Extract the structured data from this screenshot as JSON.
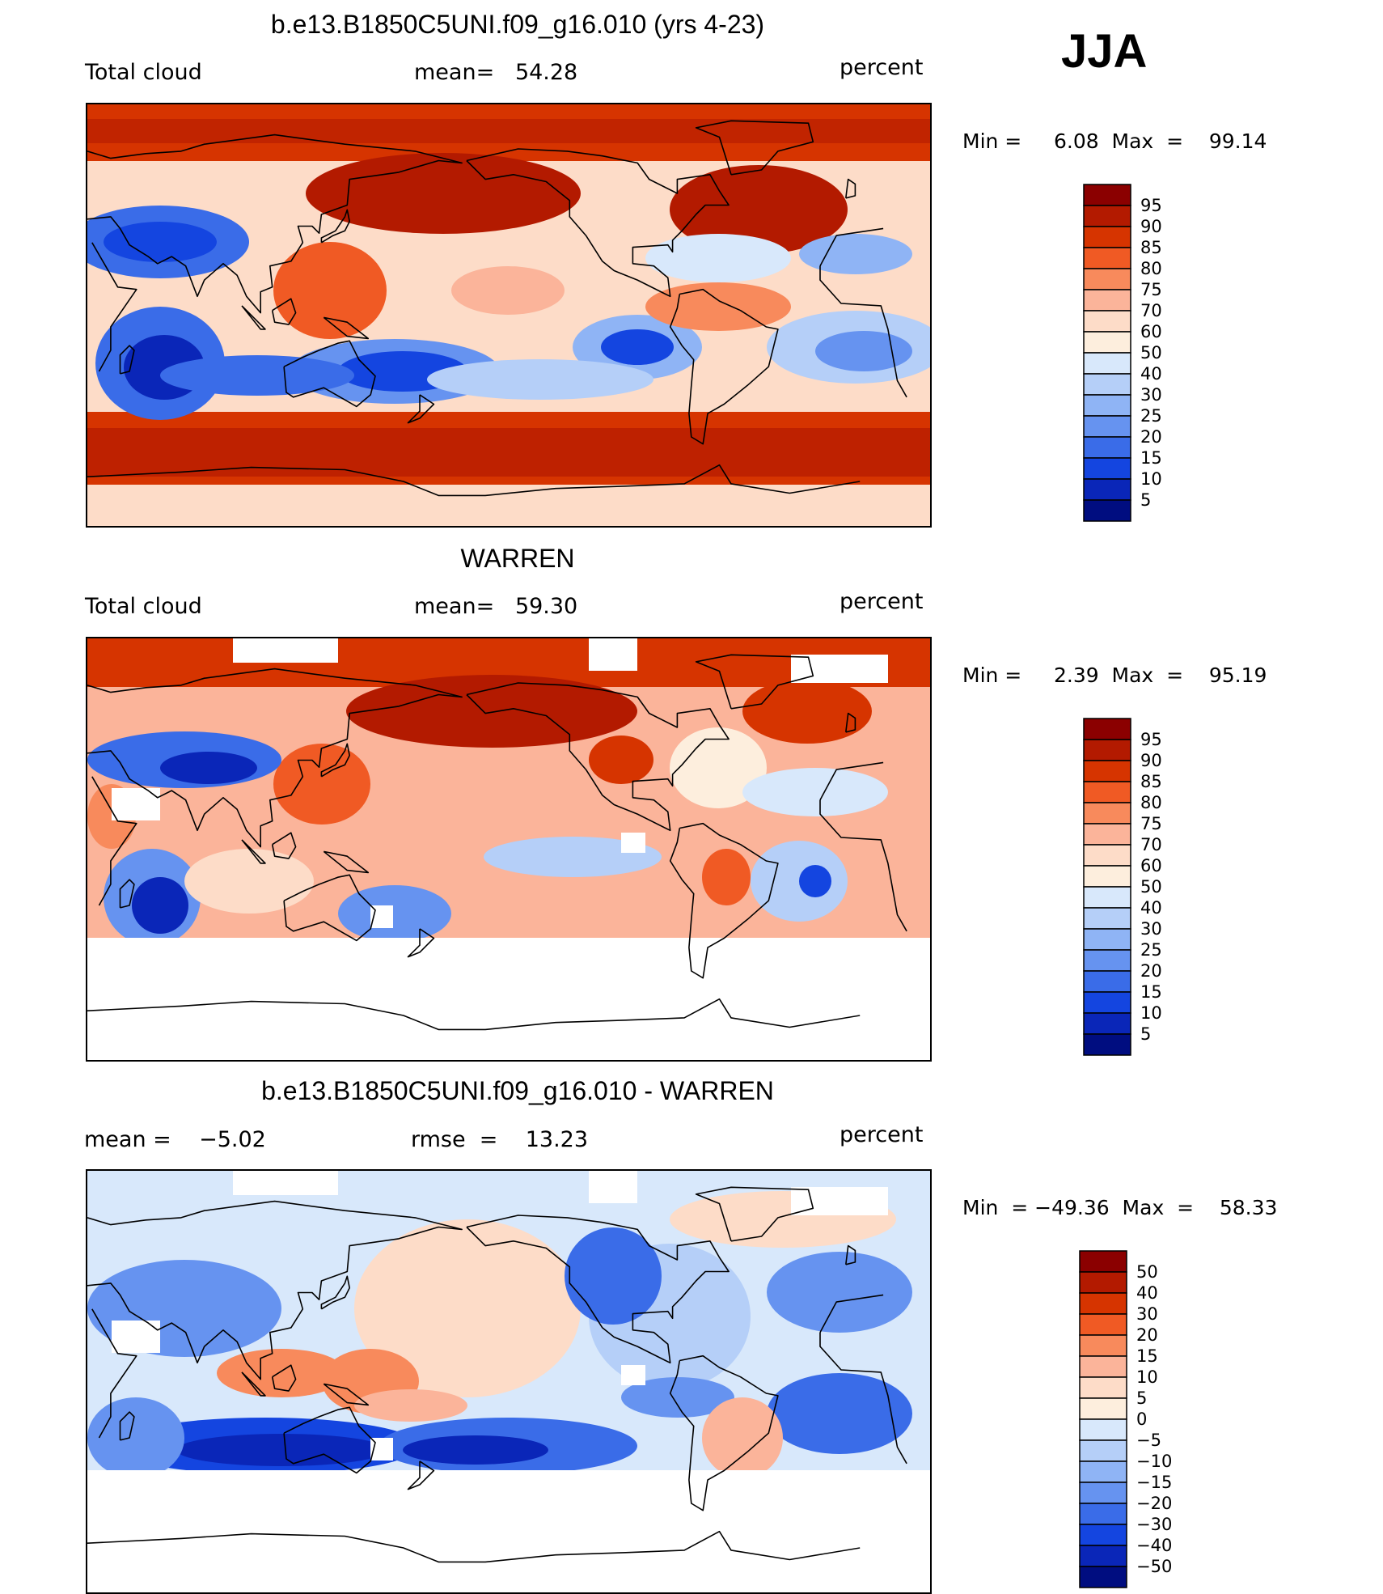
{
  "season": "JJA",
  "chart_data": [
    {
      "type": "heatmap",
      "title": "b.e13.B1850C5UNI.f09_g16.010 (yrs 4-23)",
      "variable_label": "Total cloud",
      "stat_text": "mean=   54.28",
      "units": "percent",
      "range_text": "Min =     6.08  Max  =    99.14",
      "colorbar_levels": [
        "95",
        "90",
        "85",
        "80",
        "75",
        "70",
        "60",
        "50",
        "40",
        "30",
        "25",
        "20",
        "15",
        "10",
        "5"
      ],
      "colorbar_colors": [
        "#8b0000",
        "#b31a00",
        "#d63400",
        "#f05a24",
        "#f88a5c",
        "#fbb49a",
        "#fddcc8",
        "#fdeedd",
        "#d8e8fb",
        "#b5cff8",
        "#8fb4f5",
        "#6693f0",
        "#3a6ce8",
        "#1445e0",
        "#0a26b8",
        "#000d80"
      ],
      "mean": 54.28,
      "min": 6.08,
      "max": 99.14
    },
    {
      "type": "heatmap",
      "title": "WARREN",
      "variable_label": "Total cloud",
      "stat_text": "mean=   59.30",
      "units": "percent",
      "range_text": "Min =     2.39  Max  =    95.19",
      "colorbar_levels": [
        "95",
        "90",
        "85",
        "80",
        "75",
        "70",
        "60",
        "50",
        "40",
        "30",
        "25",
        "20",
        "15",
        "10",
        "5"
      ],
      "colorbar_colors": [
        "#8b0000",
        "#b31a00",
        "#d63400",
        "#f05a24",
        "#f88a5c",
        "#fbb49a",
        "#fddcc8",
        "#fdeedd",
        "#d8e8fb",
        "#b5cff8",
        "#8fb4f5",
        "#6693f0",
        "#3a6ce8",
        "#1445e0",
        "#0a26b8",
        "#000d80"
      ],
      "mean": 59.3,
      "min": 2.39,
      "max": 95.19
    },
    {
      "type": "heatmap",
      "title": "b.e13.B1850C5UNI.f09_g16.010 - WARREN",
      "variable_label": "mean =    −5.02",
      "stat_text": "rmse  =    13.23",
      "units": "percent",
      "range_text": "Min  = −49.36  Max  =    58.33",
      "colorbar_levels": [
        "50",
        "40",
        "30",
        "20",
        "15",
        "10",
        "5",
        "0",
        "−5",
        "−10",
        "−15",
        "−20",
        "−30",
        "−40",
        "−50"
      ],
      "colorbar_colors": [
        "#8b0000",
        "#b31a00",
        "#d63400",
        "#f05a24",
        "#f88a5c",
        "#fbb49a",
        "#fddcc8",
        "#fdeedd",
        "#d8e8fb",
        "#b5cff8",
        "#8fb4f5",
        "#6693f0",
        "#3a6ce8",
        "#1445e0",
        "#0a26b8",
        "#000d80"
      ],
      "mean": -5.02,
      "rmse": 13.23,
      "min": -49.36,
      "max": 58.33
    }
  ]
}
